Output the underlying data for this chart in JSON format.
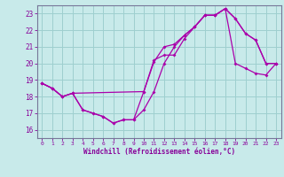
{
  "xlabel": "Windchill (Refroidissement éolien,°C)",
  "bg_color": "#c8eaea",
  "line_color": "#aa00aa",
  "grid_color": "#9ecfcf",
  "axis_color": "#777799",
  "text_color": "#880099",
  "xlim": [
    -0.5,
    23.5
  ],
  "ylim": [
    15.5,
    23.5
  ],
  "xticks": [
    0,
    1,
    2,
    3,
    4,
    5,
    6,
    7,
    8,
    9,
    10,
    11,
    12,
    13,
    14,
    15,
    16,
    17,
    18,
    19,
    20,
    21,
    22,
    23
  ],
  "yticks": [
    16,
    17,
    18,
    19,
    20,
    21,
    22,
    23
  ],
  "line1_x": [
    0,
    1,
    2,
    3,
    10,
    11,
    12,
    13,
    14,
    15,
    16,
    17,
    18,
    19,
    20,
    21,
    22,
    23
  ],
  "line1_y": [
    18.8,
    18.5,
    18.0,
    18.2,
    18.3,
    20.1,
    21.0,
    21.15,
    21.7,
    22.2,
    22.9,
    22.9,
    23.3,
    22.7,
    21.8,
    21.4,
    20.0,
    20.0
  ],
  "line2_x": [
    0,
    1,
    2,
    3,
    4,
    5,
    6,
    7,
    8,
    9,
    10,
    11,
    12,
    13,
    14,
    15,
    16,
    17,
    18,
    19,
    20,
    21,
    22,
    23
  ],
  "line2_y": [
    18.8,
    18.5,
    18.0,
    18.2,
    17.2,
    17.0,
    16.8,
    16.4,
    16.6,
    16.6,
    17.2,
    18.3,
    20.0,
    21.0,
    21.7,
    22.2,
    22.9,
    22.9,
    23.3,
    22.7,
    21.8,
    21.4,
    20.0,
    20.0
  ],
  "line3_x": [
    0,
    1,
    2,
    3,
    4,
    5,
    6,
    7,
    8,
    9,
    10,
    11,
    12,
    13,
    14,
    15,
    16,
    17,
    18,
    19,
    20,
    21,
    22,
    23
  ],
  "line3_y": [
    18.8,
    18.5,
    18.0,
    18.2,
    17.2,
    17.0,
    16.8,
    16.4,
    16.6,
    16.6,
    18.3,
    20.2,
    20.5,
    20.5,
    21.5,
    22.2,
    22.9,
    22.9,
    23.3,
    20.0,
    19.7,
    19.4,
    19.3,
    20.0
  ]
}
